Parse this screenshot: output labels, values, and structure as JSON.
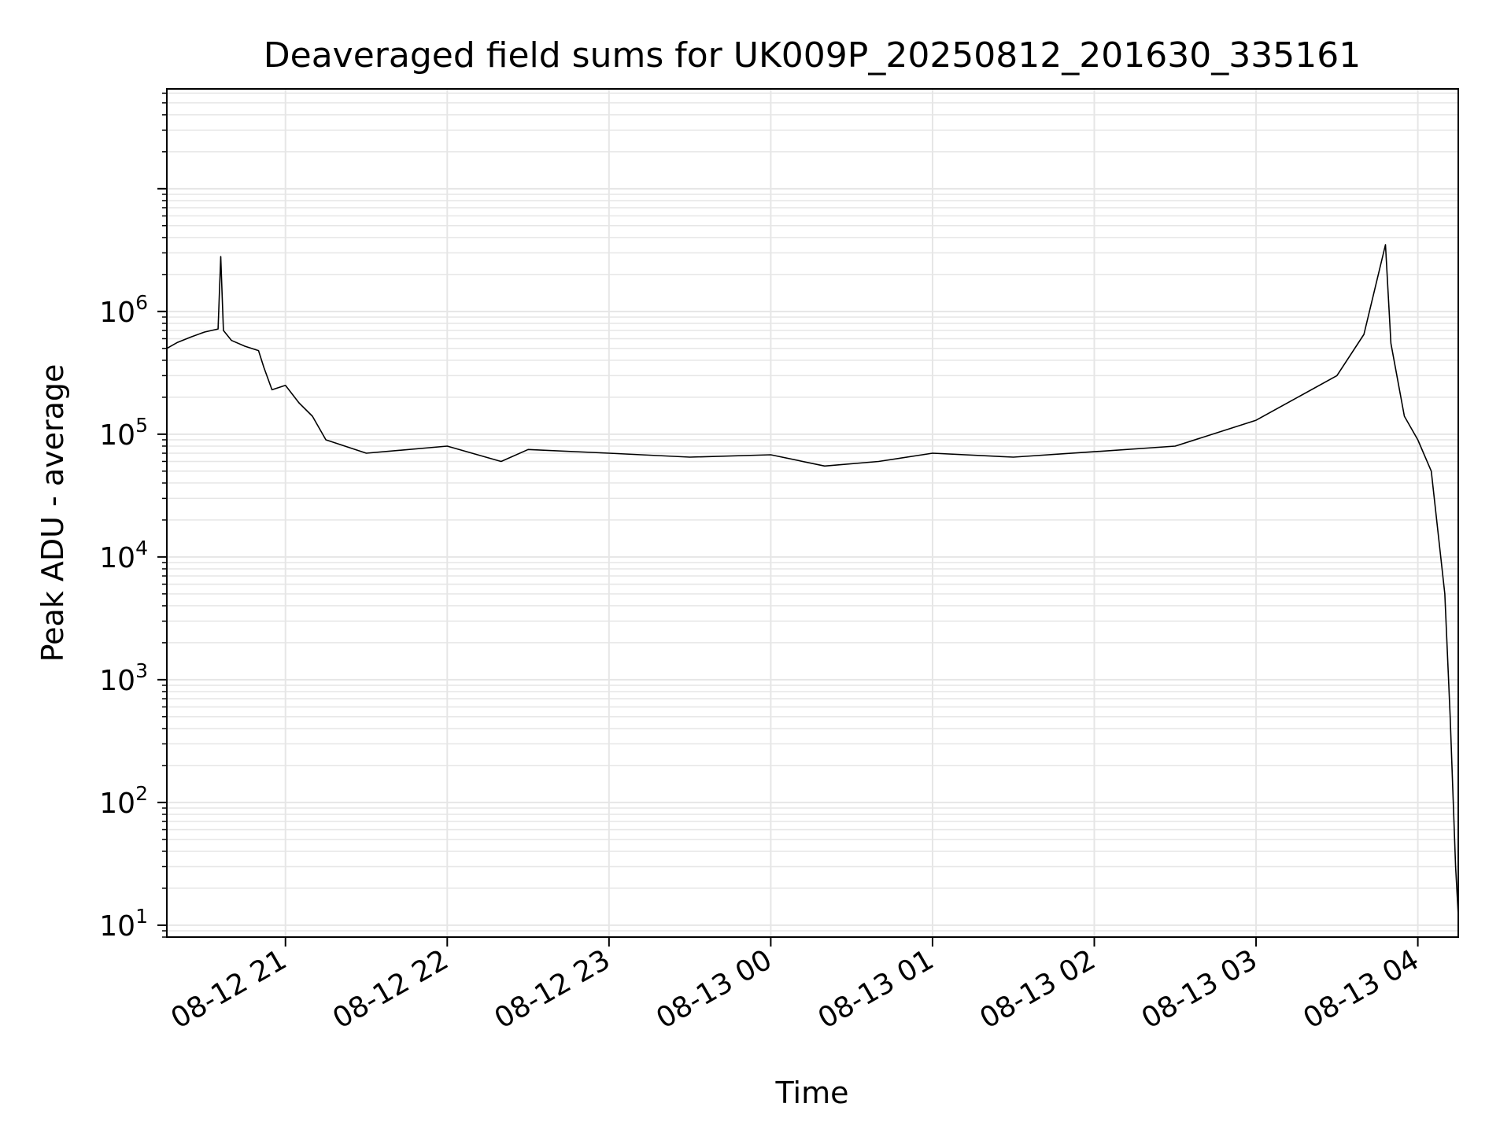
{
  "chart_data": {
    "type": "line",
    "title": "Deaveraged field sums for UK009P_20250812_201630_335161",
    "xlabel": "Time",
    "ylabel": "Peak ADU - average",
    "yscale": "log",
    "ylim": [
      8,
      65000000
    ],
    "xlim": [
      "2025-08-12 20:16",
      "2025-08-13 04:15"
    ],
    "grid": true,
    "legend": "none",
    "line_color": "#000000",
    "grid_color": "#e6e6e6",
    "x_ticks": [
      {
        "t": "2025-08-12 21:00",
        "label": "08-12 21"
      },
      {
        "t": "2025-08-12 22:00",
        "label": "08-12 22"
      },
      {
        "t": "2025-08-12 23:00",
        "label": "08-12 23"
      },
      {
        "t": "2025-08-13 00:00",
        "label": "08-13 00"
      },
      {
        "t": "2025-08-13 01:00",
        "label": "08-13 01"
      },
      {
        "t": "2025-08-13 02:00",
        "label": "08-13 02"
      },
      {
        "t": "2025-08-13 03:00",
        "label": "08-13 03"
      },
      {
        "t": "2025-08-13 04:00",
        "label": "08-13 04"
      }
    ],
    "y_ticks": [
      {
        "value": 10,
        "base": "10",
        "exp": "1"
      },
      {
        "value": 100,
        "base": "10",
        "exp": "2"
      },
      {
        "value": 1000,
        "base": "10",
        "exp": "3"
      },
      {
        "value": 10000,
        "base": "10",
        "exp": "4"
      },
      {
        "value": 100000,
        "base": "10",
        "exp": "5"
      },
      {
        "value": 1000000,
        "base": "10",
        "exp": "6"
      }
    ],
    "series": [
      {
        "color": "#000000",
        "points": [
          [
            "2025-08-12 20:16",
            500000
          ],
          [
            "2025-08-12 20:20",
            560000
          ],
          [
            "2025-08-12 20:25",
            620000
          ],
          [
            "2025-08-12 20:30",
            680000
          ],
          [
            "2025-08-12 20:35",
            720000
          ],
          [
            "2025-08-12 20:36",
            2800000
          ],
          [
            "2025-08-12 20:37",
            700000
          ],
          [
            "2025-08-12 20:40",
            580000
          ],
          [
            "2025-08-12 20:45",
            520000
          ],
          [
            "2025-08-12 20:50",
            480000
          ],
          [
            "2025-08-12 20:52",
            350000
          ],
          [
            "2025-08-12 20:55",
            230000
          ],
          [
            "2025-08-12 21:00",
            250000
          ],
          [
            "2025-08-12 21:05",
            180000
          ],
          [
            "2025-08-12 21:10",
            140000
          ],
          [
            "2025-08-12 21:15",
            90000
          ],
          [
            "2025-08-12 21:30",
            70000
          ],
          [
            "2025-08-12 22:00",
            80000
          ],
          [
            "2025-08-12 22:20",
            60000
          ],
          [
            "2025-08-12 22:30",
            75000
          ],
          [
            "2025-08-12 23:00",
            70000
          ],
          [
            "2025-08-12 23:30",
            65000
          ],
          [
            "2025-08-13 00:00",
            68000
          ],
          [
            "2025-08-13 00:20",
            55000
          ],
          [
            "2025-08-13 00:40",
            60000
          ],
          [
            "2025-08-13 01:00",
            70000
          ],
          [
            "2025-08-13 01:30",
            65000
          ],
          [
            "2025-08-13 02:00",
            72000
          ],
          [
            "2025-08-13 02:30",
            80000
          ],
          [
            "2025-08-13 03:00",
            130000
          ],
          [
            "2025-08-13 03:30",
            300000
          ],
          [
            "2025-08-13 03:40",
            650000
          ],
          [
            "2025-08-13 03:48",
            3500000
          ],
          [
            "2025-08-13 03:50",
            550000
          ],
          [
            "2025-08-13 03:55",
            140000
          ],
          [
            "2025-08-13 04:00",
            90000
          ],
          [
            "2025-08-13 04:05",
            50000
          ],
          [
            "2025-08-13 04:10",
            5000
          ],
          [
            "2025-08-13 04:12",
            500
          ],
          [
            "2025-08-13 04:14",
            30
          ],
          [
            "2025-08-13 04:15",
            12
          ]
        ]
      }
    ]
  }
}
